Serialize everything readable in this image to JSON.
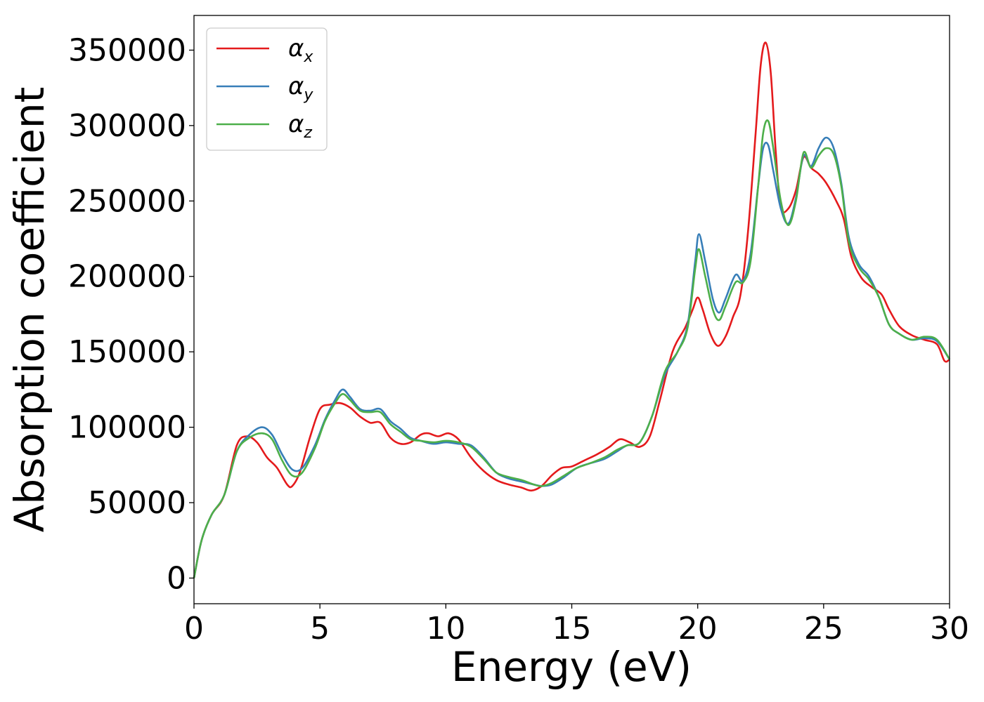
{
  "chart_data": {
    "type": "line",
    "xlabel": "Energy (eV)",
    "ylabel": "Absorption coefficient",
    "xlim": [
      0,
      30
    ],
    "ylim": [
      -17000,
      373000
    ],
    "xticks": [
      0,
      5,
      10,
      15,
      20,
      25,
      30
    ],
    "xtick_labels": [
      "0",
      "5",
      "10",
      "15",
      "20",
      "25",
      "30"
    ],
    "yticks": [
      0,
      50000,
      100000,
      150000,
      200000,
      250000,
      300000,
      350000
    ],
    "ytick_labels": [
      "0",
      "50000",
      "100000",
      "150000",
      "200000",
      "250000",
      "300000",
      "350000"
    ],
    "grid": false,
    "legend_position": "top-left",
    "series": [
      {
        "name": "α_x",
        "symbol": "α",
        "subscript": "x",
        "color": "#e41a1c",
        "x": [
          0,
          0.3,
          0.7,
          1.2,
          1.7,
          2.1,
          2.5,
          2.9,
          3.3,
          3.7,
          3.9,
          4.2,
          4.6,
          5.0,
          5.4,
          5.8,
          6.2,
          6.6,
          7.0,
          7.4,
          7.8,
          8.2,
          8.6,
          9.0,
          9.3,
          9.7,
          10.1,
          10.5,
          11.0,
          11.5,
          12.0,
          12.5,
          13.0,
          13.4,
          13.8,
          14.2,
          14.6,
          15.0,
          15.5,
          16.0,
          16.5,
          16.9,
          17.3,
          17.7,
          18.1,
          18.5,
          19.0,
          19.5,
          19.8,
          20.0,
          20.2,
          20.5,
          20.8,
          21.1,
          21.4,
          21.7,
          22.0,
          22.3,
          22.5,
          22.7,
          22.9,
          23.1,
          23.3,
          23.6,
          23.9,
          24.2,
          24.5,
          24.8,
          25.1,
          25.5,
          25.8,
          26.1,
          26.5,
          26.9,
          27.3,
          27.6,
          28.0,
          28.5,
          29.0,
          29.5,
          29.8,
          30.0
        ],
        "y": [
          0,
          25000,
          42000,
          55000,
          88000,
          94000,
          90000,
          80000,
          73000,
          62000,
          61000,
          70000,
          93000,
          112000,
          115000,
          116000,
          113000,
          107000,
          103000,
          103000,
          93000,
          89000,
          90000,
          95000,
          96000,
          94000,
          96000,
          92000,
          80000,
          71000,
          65000,
          62000,
          60000,
          58000,
          61000,
          68000,
          73000,
          74000,
          78000,
          82000,
          87000,
          92000,
          90000,
          87000,
          94000,
          118000,
          150000,
          166000,
          178000,
          186000,
          178000,
          162000,
          154000,
          160000,
          173000,
          188000,
          230000,
          295000,
          340000,
          355000,
          335000,
          282000,
          246000,
          245000,
          257000,
          279000,
          272000,
          268000,
          262000,
          250000,
          238000,
          213000,
          199000,
          193000,
          188000,
          178000,
          167000,
          161000,
          158000,
          155000,
          144000,
          145000
        ]
      },
      {
        "name": "α_y",
        "symbol": "α",
        "subscript": "y",
        "color": "#377eb8",
        "x": [
          0,
          0.3,
          0.7,
          1.2,
          1.7,
          2.2,
          2.7,
          3.1,
          3.5,
          3.9,
          4.3,
          4.8,
          5.2,
          5.6,
          5.9,
          6.2,
          6.6,
          7.0,
          7.4,
          7.8,
          8.2,
          8.6,
          9.0,
          9.5,
          10.0,
          10.5,
          11.0,
          11.5,
          12.0,
          12.5,
          13.0,
          13.5,
          13.8,
          14.2,
          14.7,
          15.2,
          15.7,
          16.3,
          16.8,
          17.2,
          17.7,
          18.2,
          18.7,
          19.2,
          19.6,
          19.9,
          20.05,
          20.3,
          20.6,
          20.85,
          21.1,
          21.5,
          21.8,
          22.1,
          22.4,
          22.6,
          22.8,
          23.0,
          23.3,
          23.6,
          23.9,
          24.2,
          24.5,
          24.8,
          25.1,
          25.4,
          25.7,
          26.0,
          26.4,
          26.8,
          27.2,
          27.6,
          28.0,
          28.5,
          29.0,
          29.5,
          30.0
        ],
        "y": [
          0,
          25000,
          42000,
          55000,
          84000,
          95000,
          100000,
          95000,
          82000,
          72000,
          73000,
          88000,
          105000,
          118000,
          125000,
          120000,
          112000,
          111000,
          112000,
          104000,
          99000,
          93000,
          91000,
          89000,
          90000,
          89000,
          88000,
          80000,
          70000,
          66000,
          64000,
          62000,
          61000,
          62000,
          67000,
          73000,
          76000,
          79000,
          84000,
          88000,
          90000,
          108000,
          135000,
          150000,
          168000,
          210000,
          228000,
          210000,
          185000,
          176000,
          185000,
          201000,
          197000,
          215000,
          260000,
          285000,
          287000,
          270000,
          245000,
          235000,
          252000,
          280000,
          273000,
          285000,
          292000,
          285000,
          262000,
          226000,
          208000,
          200000,
          186000,
          168000,
          162000,
          158000,
          159000,
          157000,
          145000
        ]
      },
      {
        "name": "α_z",
        "symbol": "α",
        "subscript": "z",
        "color": "#4daf4a",
        "x": [
          0,
          0.3,
          0.7,
          1.2,
          1.7,
          2.2,
          2.7,
          3.1,
          3.5,
          3.9,
          4.3,
          4.8,
          5.2,
          5.6,
          5.9,
          6.2,
          6.6,
          7.0,
          7.4,
          7.8,
          8.2,
          8.6,
          9.0,
          9.5,
          10.0,
          10.5,
          11.0,
          11.5,
          12.0,
          12.5,
          13.0,
          13.5,
          13.8,
          14.2,
          14.7,
          15.2,
          15.7,
          16.3,
          16.8,
          17.2,
          17.7,
          18.2,
          18.7,
          19.2,
          19.6,
          19.9,
          20.05,
          20.3,
          20.6,
          20.85,
          21.1,
          21.5,
          21.8,
          22.1,
          22.4,
          22.6,
          22.8,
          23.0,
          23.3,
          23.6,
          23.9,
          24.2,
          24.5,
          24.8,
          25.1,
          25.4,
          25.7,
          26.0,
          26.4,
          26.8,
          27.2,
          27.6,
          28.0,
          28.5,
          29.0,
          29.5,
          30.0
        ],
        "y": [
          0,
          25000,
          42000,
          55000,
          84000,
          93000,
          96000,
          92000,
          78000,
          68000,
          70000,
          86000,
          104000,
          116000,
          122000,
          118000,
          111000,
          110000,
          110000,
          102000,
          97000,
          92000,
          91000,
          90000,
          91000,
          90000,
          87000,
          79000,
          70000,
          67000,
          65000,
          62000,
          61000,
          63000,
          68000,
          73000,
          76000,
          80000,
          85000,
          88000,
          90000,
          108000,
          137000,
          150000,
          166000,
          205000,
          218000,
          200000,
          178000,
          171000,
          180000,
          196000,
          196000,
          210000,
          260000,
          295000,
          303000,
          285000,
          250000,
          234000,
          250000,
          282000,
          272000,
          280000,
          285000,
          281000,
          260000,
          223000,
          206000,
          198000,
          186000,
          168000,
          162000,
          158000,
          160000,
          158000,
          145000
        ]
      }
    ]
  }
}
